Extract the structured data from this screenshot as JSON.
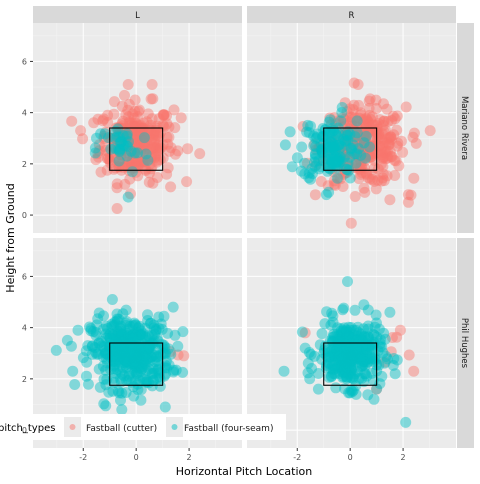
{
  "chart_data": {
    "type": "scatter",
    "xlabel": "Horizontal Pitch Location",
    "ylabel": "Height from Ground",
    "xlim": [
      -3.9,
      4.0
    ],
    "ylim": [
      -0.7,
      7.5
    ],
    "x_ticks": [
      -2,
      0,
      2
    ],
    "y_ticks": [
      0,
      2,
      4,
      6
    ],
    "facet_columns": [
      "L",
      "R"
    ],
    "facet_rows": [
      "Mariano Rivera",
      "Phil Hughes"
    ],
    "strike_zone": {
      "x": [
        -1.0,
        1.0
      ],
      "y": [
        1.75,
        3.4
      ]
    },
    "legend": {
      "title": "pitch_types",
      "position": "bottom-left",
      "entries": [
        {
          "label": "Fastball (cutter)",
          "color": "#F8766D"
        },
        {
          "label": "Fastball (four-seam)",
          "color": "#00BFC4"
        }
      ]
    },
    "series": [
      {
        "name": "Fastball (cutter)",
        "color": "#F8766D",
        "clusters": [
          {
            "panel": "Mariano Rivera|L",
            "center": [
              0.0,
              2.8
            ],
            "spread": [
              0.7,
              0.75
            ],
            "count": 280,
            "outliers": [
              [
                -0.3,
                5.1
              ],
              [
                0.6,
                5.1
              ],
              [
                2.4,
                2.4
              ],
              [
                1.3,
                1.1
              ],
              [
                -2.1,
                3.3
              ],
              [
                1.7,
                3.8
              ]
            ]
          },
          {
            "panel": "Mariano Rivera|R",
            "center": [
              0.5,
              2.7
            ],
            "spread": [
              0.8,
              0.75
            ],
            "count": 300,
            "outliers": [
              [
                0.3,
                5.1
              ],
              [
                2.2,
                0.5
              ],
              [
                2.2,
                0.8
              ],
              [
                2.5,
                2.8
              ],
              [
                1.5,
                0.6
              ],
              [
                -0.6,
                1.2
              ]
            ]
          },
          {
            "panel": "Phil Hughes|L",
            "center": [
              1.2,
              3.0
            ],
            "spread": [
              0.3,
              0.3
            ],
            "count": 2,
            "outliers": [
              [
                1.8,
                2.9
              ]
            ]
          },
          {
            "panel": "Phil Hughes|R",
            "center": [
              1.5,
              2.8
            ],
            "spread": [
              0.5,
              0.5
            ],
            "count": 5,
            "outliers": [
              [
                -1.7,
                3.8
              ],
              [
                2.4,
                2.3
              ],
              [
                1.9,
                3.9
              ],
              [
                1.0,
                1.6
              ]
            ]
          }
        ]
      },
      {
        "name": "Fastball (four-seam)",
        "color": "#00BFC4",
        "clusters": [
          {
            "panel": "Mariano Rivera|L",
            "center": [
              -0.5,
              2.6
            ],
            "spread": [
              0.5,
              0.5
            ],
            "count": 35,
            "outliers": [
              [
                -0.3,
                0.7
              ],
              [
                -1.5,
                3.0
              ]
            ]
          },
          {
            "panel": "Mariano Rivera|R",
            "center": [
              -0.7,
              2.6
            ],
            "spread": [
              0.6,
              0.6
            ],
            "count": 140,
            "outliers": [
              [
                -1.6,
                3.5
              ],
              [
                -0.3,
                4.2
              ],
              [
                -1.5,
                1.4
              ],
              [
                -0.9,
                0.8
              ]
            ]
          },
          {
            "panel": "Phil Hughes|L",
            "center": [
              -0.2,
              3.0
            ],
            "spread": [
              0.75,
              0.7
            ],
            "count": 400,
            "outliers": [
              [
                -2.4,
                2.3
              ],
              [
                -2.2,
                3.9
              ],
              [
                1.4,
                4.8
              ],
              [
                -0.9,
                5.1
              ],
              [
                1.1,
                0.9
              ],
              [
                0.9,
                2.0
              ],
              [
                -2.6,
                3.5
              ]
            ]
          },
          {
            "panel": "Phil Hughes|R",
            "center": [
              0.0,
              3.0
            ],
            "spread": [
              0.6,
              0.65
            ],
            "count": 320,
            "outliers": [
              [
                2.1,
                0.3
              ],
              [
                -0.1,
                5.8
              ],
              [
                -2.5,
                2.3
              ],
              [
                1.5,
                4.6
              ],
              [
                -1.2,
                1.6
              ],
              [
                0.9,
                1.2
              ],
              [
                -1.7,
                3.2
              ],
              [
                1.7,
                2.2
              ]
            ]
          }
        ]
      }
    ]
  }
}
